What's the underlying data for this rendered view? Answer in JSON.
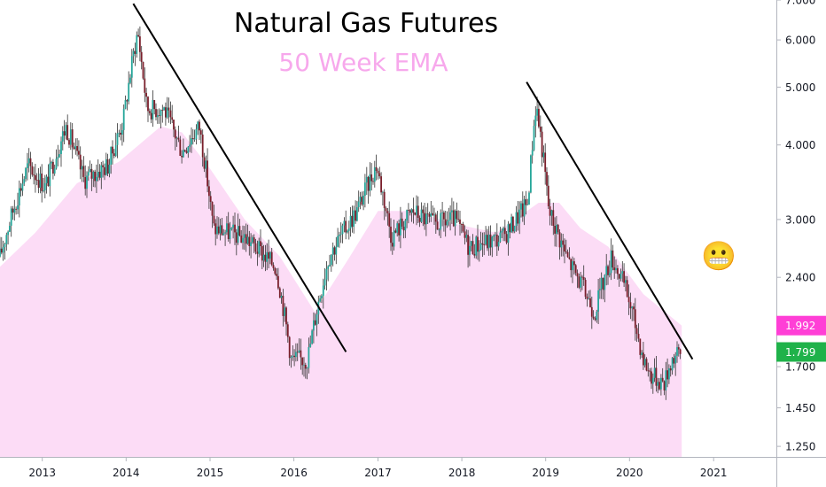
{
  "chart_data": {
    "type": "candlestick",
    "title": "Natural Gas Futures",
    "subtitle": "50 Week EMA",
    "y_scale": "log",
    "ylim": [
      1.2,
      7.0
    ],
    "y_ticks": [
      "7.000",
      "6.000",
      "5.000",
      "4.000",
      "3.000",
      "2.400",
      "1.700",
      "1.450",
      "1.250"
    ],
    "x_ticks": [
      "2013",
      "2014",
      "2015",
      "2016",
      "2017",
      "2018",
      "2019",
      "2020",
      "2021"
    ],
    "xlim": [
      "2012-07-01",
      "2021-10-01"
    ],
    "colors": {
      "up": "#26a69a",
      "down": "#7a1f2b",
      "wick": "#333333",
      "ema_fill": "#fcdcf6",
      "ema_badge": "#ff3fd6",
      "price_badge": "#1fb24a",
      "trendline": "#000000",
      "title": "#000000",
      "subtitle": "#f7a8ec"
    },
    "price_points": [
      [
        "2012-07-01",
        2.6
      ],
      [
        "2012-11-01",
        3.7
      ],
      [
        "2013-01-15",
        3.4
      ],
      [
        "2013-04-15",
        4.3
      ],
      [
        "2013-07-01",
        3.5
      ],
      [
        "2013-10-15",
        3.7
      ],
      [
        "2013-12-20",
        4.4
      ],
      [
        "2014-02-20",
        6.2
      ],
      [
        "2014-04-01",
        4.6
      ],
      [
        "2014-06-15",
        4.6
      ],
      [
        "2014-09-01",
        3.9
      ],
      [
        "2014-11-15",
        4.3
      ],
      [
        "2015-01-15",
        2.9
      ],
      [
        "2015-06-01",
        2.8
      ],
      [
        "2015-10-15",
        2.5
      ],
      [
        "2015-12-20",
        1.75
      ],
      [
        "2016-03-01",
        1.75
      ],
      [
        "2016-06-01",
        2.6
      ],
      [
        "2016-10-01",
        3.1
      ],
      [
        "2016-12-25",
        3.7
      ],
      [
        "2017-03-01",
        2.8
      ],
      [
        "2017-06-01",
        3.1
      ],
      [
        "2017-09-01",
        2.95
      ],
      [
        "2017-12-01",
        3.0
      ],
      [
        "2018-02-01",
        2.7
      ],
      [
        "2018-07-01",
        2.8
      ],
      [
        "2018-10-15",
        3.2
      ],
      [
        "2018-11-20",
        4.7
      ],
      [
        "2019-01-15",
        3.1
      ],
      [
        "2019-04-01",
        2.6
      ],
      [
        "2019-08-01",
        2.1
      ],
      [
        "2019-10-15",
        2.6
      ],
      [
        "2019-12-15",
        2.3
      ],
      [
        "2020-03-01",
        1.75
      ],
      [
        "2020-04-01",
        1.65
      ],
      [
        "2020-06-01",
        1.6
      ],
      [
        "2020-07-01",
        1.75
      ],
      [
        "2020-08-15",
        1.8
      ]
    ],
    "ema_points": [
      [
        "2012-07-01",
        2.5
      ],
      [
        "2012-12-01",
        2.85
      ],
      [
        "2013-06-01",
        3.45
      ],
      [
        "2013-12-01",
        3.75
      ],
      [
        "2014-06-01",
        4.3
      ],
      [
        "2014-09-01",
        4.2
      ],
      [
        "2015-01-01",
        3.65
      ],
      [
        "2015-06-01",
        3.0
      ],
      [
        "2015-11-01",
        2.6
      ],
      [
        "2016-04-01",
        2.1
      ],
      [
        "2016-09-01",
        2.6
      ],
      [
        "2017-01-01",
        3.1
      ],
      [
        "2017-06-01",
        3.1
      ],
      [
        "2017-12-01",
        2.95
      ],
      [
        "2018-06-01",
        2.85
      ],
      [
        "2018-12-01",
        3.2
      ],
      [
        "2019-03-01",
        3.2
      ],
      [
        "2019-06-01",
        2.9
      ],
      [
        "2019-10-01",
        2.7
      ],
      [
        "2020-03-01",
        2.25
      ],
      [
        "2020-08-15",
        1.992
      ]
    ],
    "trendlines": [
      {
        "from": [
          "2014-02-01",
          6.9
        ],
        "to": [
          "2016-08-15",
          1.8
        ]
      },
      {
        "from": [
          "2018-10-10",
          5.1
        ],
        "to": [
          "2020-10-01",
          1.75
        ]
      }
    ],
    "last_labels": {
      "ema_value": "1.992",
      "price_value": "1.799"
    },
    "annotation_emoji": "😬"
  }
}
